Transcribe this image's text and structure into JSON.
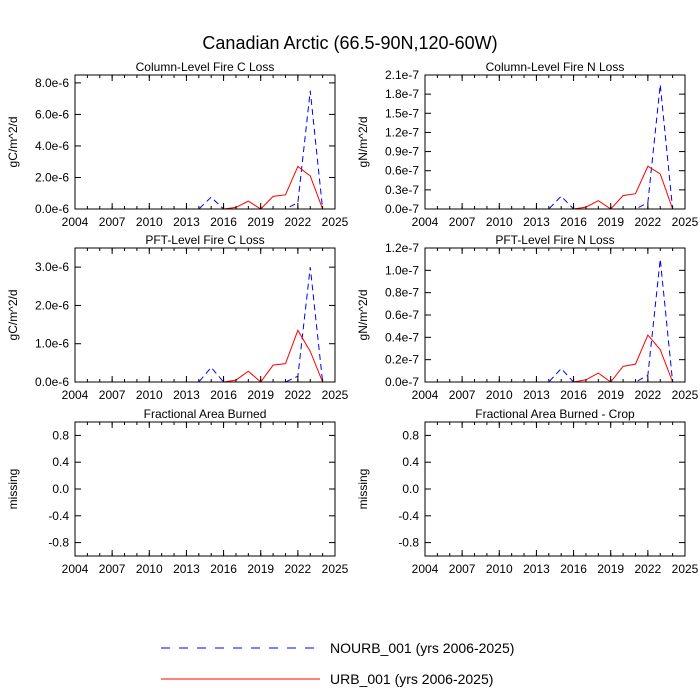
{
  "figure": {
    "title": "Canadian Arctic (66.5-90N,120-60W)"
  },
  "chart_data": [
    {
      "type": "line",
      "title": "Column-Level Fire C Loss",
      "xlabel": "",
      "ylabel": "gC/m^2/d",
      "xlim": [
        2004,
        2025
      ],
      "ylim": [
        0,
        8.5e-06
      ],
      "xticks": [
        2004,
        2007,
        2010,
        2013,
        2016,
        2019,
        2022,
        2025
      ],
      "yticks": [
        {
          "v": 0,
          "label": "0.0e-6"
        },
        {
          "v": 2e-06,
          "label": "2.0e-6"
        },
        {
          "v": 4e-06,
          "label": "4.0e-6"
        },
        {
          "v": 6e-06,
          "label": "6.0e-6"
        },
        {
          "v": 8e-06,
          "label": "8.0e-6"
        }
      ],
      "x": [
        2006,
        2007,
        2008,
        2009,
        2010,
        2011,
        2012,
        2013,
        2014,
        2015,
        2016,
        2017,
        2018,
        2019,
        2020,
        2021,
        2022,
        2023,
        2024,
        2025
      ],
      "series": [
        {
          "name": "NOURB_001",
          "color": "#0000ff",
          "dash": true,
          "values": [
            0,
            0,
            0,
            0,
            0,
            0,
            0,
            0,
            0,
            7.5e-07,
            0,
            0,
            0,
            0,
            0,
            0,
            4e-07,
            7.5e-06,
            0,
            0
          ]
        },
        {
          "name": "URB_001",
          "color": "#ff0000",
          "dash": false,
          "values": [
            0,
            0,
            0,
            0,
            0,
            0,
            0,
            0,
            0,
            0,
            0,
            1e-07,
            5e-07,
            0,
            8e-07,
            9e-07,
            2.7e-06,
            2.1e-06,
            0,
            0
          ]
        }
      ]
    },
    {
      "type": "line",
      "title": "Column-Level Fire N Loss",
      "xlabel": "",
      "ylabel": "gN/m^2/d",
      "xlim": [
        2004,
        2025
      ],
      "ylim": [
        0,
        2.1e-07
      ],
      "xticks": [
        2004,
        2007,
        2010,
        2013,
        2016,
        2019,
        2022,
        2025
      ],
      "yticks": [
        {
          "v": 0,
          "label": "0.0e-7"
        },
        {
          "v": 3e-08,
          "label": "0.3e-7"
        },
        {
          "v": 6e-08,
          "label": "0.6e-7"
        },
        {
          "v": 9e-08,
          "label": "0.9e-7"
        },
        {
          "v": 1.2e-07,
          "label": "1.2e-7"
        },
        {
          "v": 1.5e-07,
          "label": "1.5e-7"
        },
        {
          "v": 1.8e-07,
          "label": "1.8e-7"
        },
        {
          "v": 2.1e-07,
          "label": "2.1e-7"
        }
      ],
      "x": [
        2006,
        2007,
        2008,
        2009,
        2010,
        2011,
        2012,
        2013,
        2014,
        2015,
        2016,
        2017,
        2018,
        2019,
        2020,
        2021,
        2022,
        2023,
        2024,
        2025
      ],
      "series": [
        {
          "name": "NOURB_001",
          "color": "#0000ff",
          "dash": true,
          "values": [
            0,
            0,
            0,
            0,
            0,
            0,
            0,
            0,
            0,
            2e-08,
            0,
            0,
            0,
            0,
            0,
            0,
            1e-08,
            1.95e-07,
            0,
            0
          ]
        },
        {
          "name": "URB_001",
          "color": "#ff0000",
          "dash": false,
          "values": [
            0,
            0,
            0,
            0,
            0,
            0,
            0,
            0,
            0,
            0,
            0,
            3e-09,
            1.3e-08,
            0,
            2.1e-08,
            2.4e-08,
            6.7e-08,
            5.5e-08,
            0,
            0
          ]
        }
      ]
    },
    {
      "type": "line",
      "title": "PFT-Level Fire C Loss",
      "xlabel": "",
      "ylabel": "gC/m^2/d",
      "xlim": [
        2004,
        2025
      ],
      "ylim": [
        0,
        3.5e-06
      ],
      "xticks": [
        2004,
        2007,
        2010,
        2013,
        2016,
        2019,
        2022,
        2025
      ],
      "yticks": [
        {
          "v": 0,
          "label": "0.0e-6"
        },
        {
          "v": 1e-06,
          "label": "1.0e-6"
        },
        {
          "v": 2e-06,
          "label": "2.0e-6"
        },
        {
          "v": 3e-06,
          "label": "3.0e-6"
        }
      ],
      "x": [
        2006,
        2007,
        2008,
        2009,
        2010,
        2011,
        2012,
        2013,
        2014,
        2015,
        2016,
        2017,
        2018,
        2019,
        2020,
        2021,
        2022,
        2023,
        2024,
        2025
      ],
      "series": [
        {
          "name": "NOURB_001",
          "color": "#0000ff",
          "dash": true,
          "values": [
            0,
            0,
            0,
            0,
            0,
            0,
            0,
            0,
            0,
            3.8e-07,
            0,
            0,
            0,
            0,
            0,
            0,
            1.5e-07,
            3e-06,
            0,
            0
          ]
        },
        {
          "name": "URB_001",
          "color": "#ff0000",
          "dash": false,
          "values": [
            0,
            0,
            0,
            0,
            0,
            0,
            0,
            0,
            0,
            0,
            0,
            5e-08,
            2.8e-07,
            0,
            4.4e-07,
            4.8e-07,
            1.35e-06,
            8e-07,
            0,
            0
          ]
        }
      ]
    },
    {
      "type": "line",
      "title": "PFT-Level Fire N Loss",
      "xlabel": "",
      "ylabel": "gN/m^2/d",
      "xlim": [
        2004,
        2025
      ],
      "ylim": [
        0,
        1.2e-07
      ],
      "xticks": [
        2004,
        2007,
        2010,
        2013,
        2016,
        2019,
        2022,
        2025
      ],
      "yticks": [
        {
          "v": 0,
          "label": "0.0e-7"
        },
        {
          "v": 2e-08,
          "label": "0.2e-7"
        },
        {
          "v": 4e-08,
          "label": "0.4e-7"
        },
        {
          "v": 6e-08,
          "label": "0.6e-7"
        },
        {
          "v": 8e-08,
          "label": "0.8e-7"
        },
        {
          "v": 1e-07,
          "label": "1.0e-7"
        },
        {
          "v": 1.2e-07,
          "label": "1.2e-7"
        }
      ],
      "x": [
        2006,
        2007,
        2008,
        2009,
        2010,
        2011,
        2012,
        2013,
        2014,
        2015,
        2016,
        2017,
        2018,
        2019,
        2020,
        2021,
        2022,
        2023,
        2024,
        2025
      ],
      "series": [
        {
          "name": "NOURB_001",
          "color": "#0000ff",
          "dash": true,
          "values": [
            0,
            0,
            0,
            0,
            0,
            0,
            0,
            0,
            0,
            1.2e-08,
            0,
            0,
            0,
            0,
            0,
            0,
            6e-09,
            1.1e-07,
            0,
            0
          ]
        },
        {
          "name": "URB_001",
          "color": "#ff0000",
          "dash": false,
          "values": [
            0,
            0,
            0,
            0,
            0,
            0,
            0,
            0,
            0,
            0,
            0,
            2e-09,
            8e-09,
            0,
            1.4e-08,
            1.6e-08,
            4.2e-08,
            2.9e-08,
            0,
            0
          ]
        }
      ]
    },
    {
      "type": "line",
      "title": "Fractional Area Burned",
      "xlabel": "",
      "ylabel": "missing",
      "xlim": [
        2004,
        2025
      ],
      "ylim": [
        -1,
        1
      ],
      "xticks": [
        2004,
        2007,
        2010,
        2013,
        2016,
        2019,
        2022,
        2025
      ],
      "yticks": [
        {
          "v": -0.8,
          "label": "-0.8"
        },
        {
          "v": -0.4,
          "label": "-0.4"
        },
        {
          "v": 0,
          "label": "0.0"
        },
        {
          "v": 0.4,
          "label": "0.4"
        },
        {
          "v": 0.8,
          "label": "0.8"
        }
      ],
      "x": [],
      "series": []
    },
    {
      "type": "line",
      "title": "Fractional Area Burned - Crop",
      "xlabel": "",
      "ylabel": "missing",
      "xlim": [
        2004,
        2025
      ],
      "ylim": [
        -1,
        1
      ],
      "xticks": [
        2004,
        2007,
        2010,
        2013,
        2016,
        2019,
        2022,
        2025
      ],
      "yticks": [
        {
          "v": -0.8,
          "label": "-0.8"
        },
        {
          "v": -0.4,
          "label": "-0.4"
        },
        {
          "v": 0,
          "label": "0.0"
        },
        {
          "v": 0.4,
          "label": "0.4"
        },
        {
          "v": 0.8,
          "label": "0.8"
        }
      ],
      "x": [],
      "series": []
    }
  ],
  "legend": [
    {
      "label": "NOURB_001 (yrs 2006-2025)",
      "color": "#0000ff",
      "dash": true
    },
    {
      "label": "URB_001 (yrs 2006-2025)",
      "color": "#ff0000",
      "dash": false
    }
  ]
}
